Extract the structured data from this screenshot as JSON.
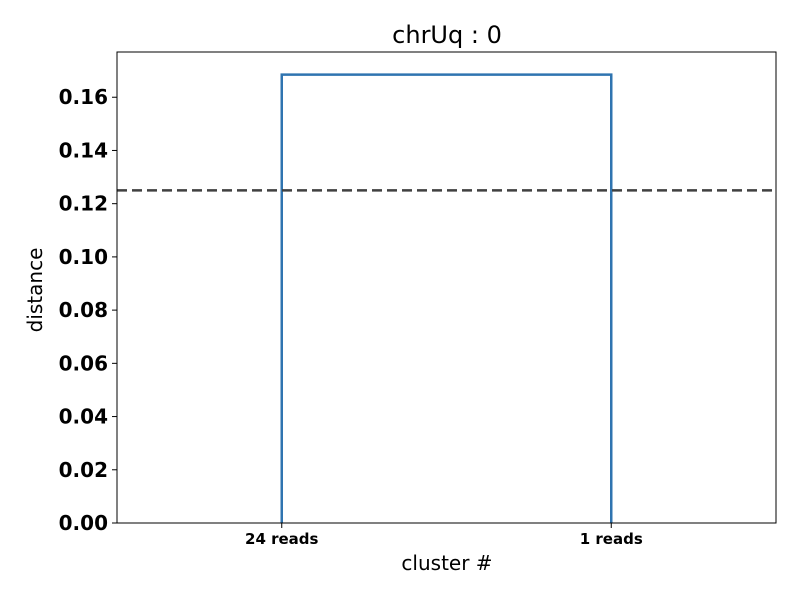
{
  "chart_data": {
    "type": "dendrogram",
    "title": "chrUq : 0",
    "xlabel": "cluster #",
    "ylabel": "distance",
    "leaves": [
      "24 reads",
      "1 reads"
    ],
    "merges": [
      {
        "left": 0,
        "right": 1,
        "distance": 0.1685
      }
    ],
    "threshold": 0.125,
    "threshold_style": "dashed",
    "ylim": [
      0,
      0.177
    ],
    "yticks": [
      0.0,
      0.02,
      0.04,
      0.06,
      0.08,
      0.1,
      0.12,
      0.14,
      0.16
    ],
    "ytick_labels": [
      "0.00",
      "0.02",
      "0.04",
      "0.06",
      "0.08",
      "0.10",
      "0.12",
      "0.14",
      "0.16"
    ],
    "grid": false,
    "colors": {
      "link": "#2f74b0",
      "threshold": "#404040"
    }
  }
}
